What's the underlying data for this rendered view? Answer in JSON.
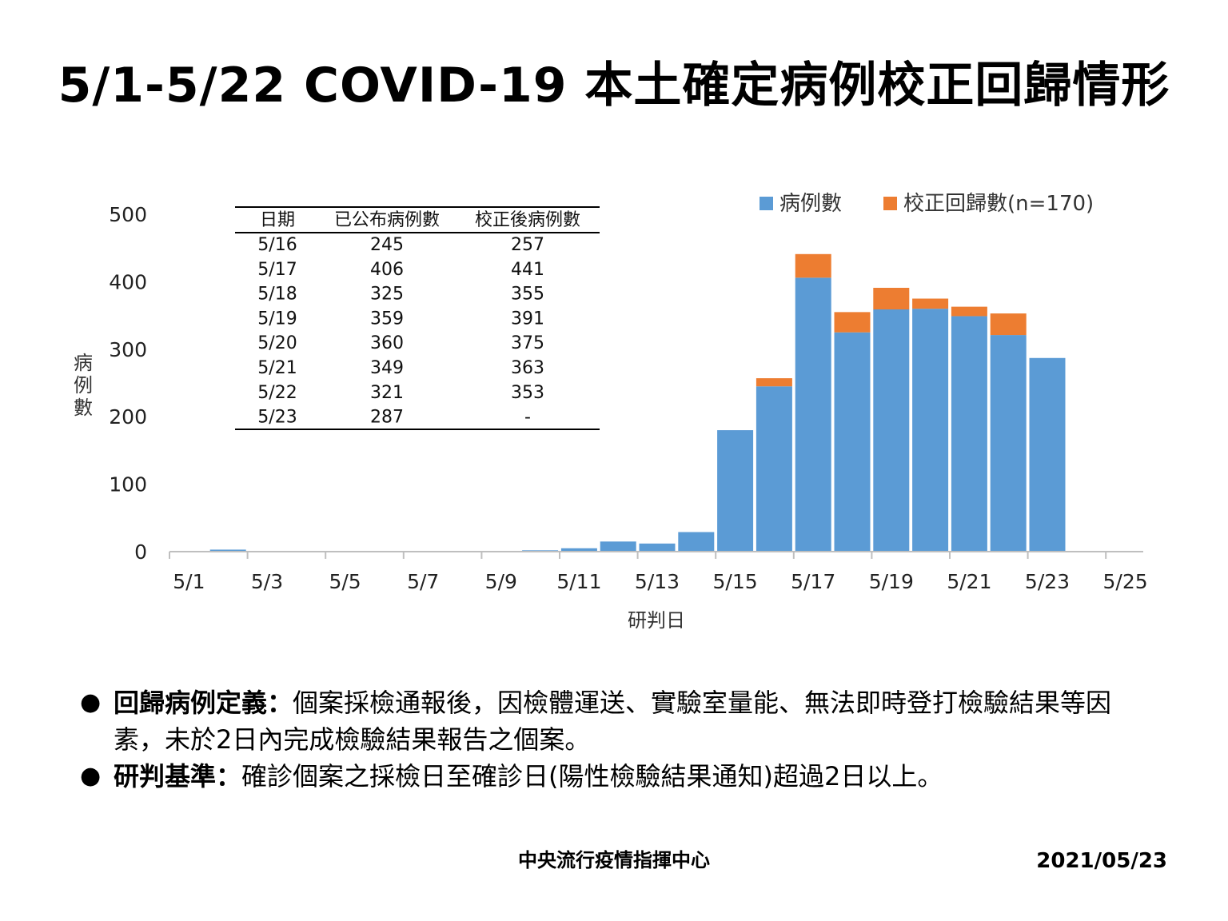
{
  "title": "5/1-5/22 COVID-19 本土確定病例校正回歸情形",
  "chart_data": {
    "type": "bar",
    "stacked": true,
    "xlabel": "研判日",
    "ylabel": "病例數",
    "ylim": [
      0,
      500
    ],
    "yticks": [
      "0",
      "100",
      "200",
      "300",
      "400",
      "500"
    ],
    "xticks": [
      "5/1",
      "5/3",
      "5/5",
      "5/7",
      "5/9",
      "5/11",
      "5/13",
      "5/15",
      "5/17",
      "5/19",
      "5/21",
      "5/23",
      "5/25"
    ],
    "categories": [
      "5/1",
      "5/2",
      "5/3",
      "5/4",
      "5/5",
      "5/6",
      "5/7",
      "5/8",
      "5/9",
      "5/10",
      "5/11",
      "5/12",
      "5/13",
      "5/14",
      "5/15",
      "5/16",
      "5/17",
      "5/18",
      "5/19",
      "5/20",
      "5/21",
      "5/22",
      "5/23",
      "5/24",
      "5/25"
    ],
    "series": [
      {
        "name": "病例數",
        "color": "#5B9BD5",
        "values": [
          0,
          3,
          0,
          0,
          0,
          0,
          0,
          0,
          0,
          2,
          5,
          15,
          12,
          29,
          180,
          245,
          406,
          325,
          359,
          360,
          349,
          321,
          287,
          0,
          0
        ]
      },
      {
        "name": "校正回歸數(n=170)",
        "color": "#ED7D31",
        "values": [
          0,
          0,
          0,
          0,
          0,
          0,
          0,
          0,
          0,
          0,
          0,
          0,
          0,
          0,
          0,
          12,
          35,
          30,
          32,
          15,
          14,
          32,
          0,
          0,
          0
        ]
      }
    ],
    "legend_position": "top-right",
    "grid": false
  },
  "table": {
    "headers": [
      "日期",
      "已公布病例數",
      "校正後病例數"
    ],
    "rows": [
      [
        "5/16",
        "245",
        "257"
      ],
      [
        "5/17",
        "406",
        "441"
      ],
      [
        "5/18",
        "325",
        "355"
      ],
      [
        "5/19",
        "359",
        "391"
      ],
      [
        "5/20",
        "360",
        "375"
      ],
      [
        "5/21",
        "349",
        "363"
      ],
      [
        "5/22",
        "321",
        "353"
      ],
      [
        "5/23",
        "287",
        "-"
      ]
    ]
  },
  "notes": [
    {
      "bullet": "●",
      "head": "回歸病例定義：",
      "body": "個案採檢通報後，因檢體運送、實驗室量能、無法即時登打檢驗結果等因素，未於2日內完成檢驗結果報告之個案。"
    },
    {
      "bullet": "●",
      "head": "研判基準：",
      "body": "確診個案之採檢日至確診日(陽性檢驗結果通知)超過2日以上。"
    }
  ],
  "footer": {
    "org": "中央流行疫情指揮中心",
    "date": "2021/05/23"
  }
}
